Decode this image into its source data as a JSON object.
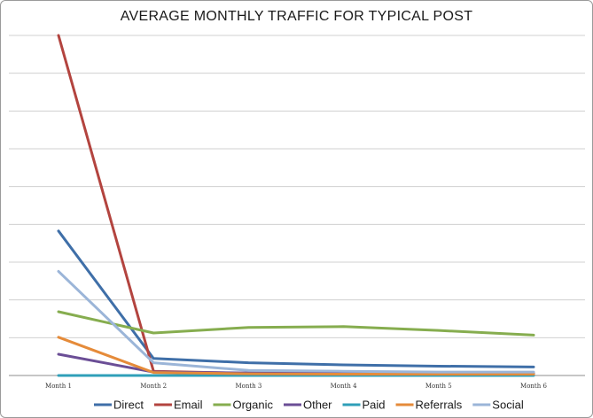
{
  "chart_data": {
    "type": "line",
    "title": "AVERAGE MONTHLY TRAFFIC FOR TYPICAL POST",
    "xlabel": "",
    "ylabel": "",
    "categories": [
      "Month 1",
      "Month 2",
      "Month 3",
      "Month 4",
      "Month 5",
      "Month 6"
    ],
    "ylim": [
      0,
      8
    ],
    "grid": true,
    "legend_position": "bottom",
    "series": [
      {
        "name": "Direct",
        "color": "#3f6fa8",
        "values": [
          3.4,
          0.4,
          0.3,
          0.25,
          0.22,
          0.2
        ]
      },
      {
        "name": "Email",
        "color": "#b3443f",
        "values": [
          8.0,
          0.1,
          0.05,
          0.05,
          0.05,
          0.05
        ]
      },
      {
        "name": "Organic",
        "color": "#86ad4f",
        "values": [
          1.5,
          1.0,
          1.13,
          1.15,
          1.06,
          0.95
        ]
      },
      {
        "name": "Other",
        "color": "#6b4e96",
        "values": [
          0.5,
          0.08,
          0.06,
          0.05,
          0.05,
          0.05
        ]
      },
      {
        "name": "Paid",
        "color": "#2f9fb8",
        "values": [
          0.0,
          0.0,
          0.0,
          0.0,
          0.0,
          0.0
        ]
      },
      {
        "name": "Referrals",
        "color": "#e58b3a",
        "values": [
          0.9,
          0.07,
          0.04,
          0.03,
          0.03,
          0.03
        ]
      },
      {
        "name": "Social",
        "color": "#9bb5d8",
        "values": [
          2.45,
          0.3,
          0.12,
          0.1,
          0.08,
          0.08
        ]
      }
    ]
  }
}
